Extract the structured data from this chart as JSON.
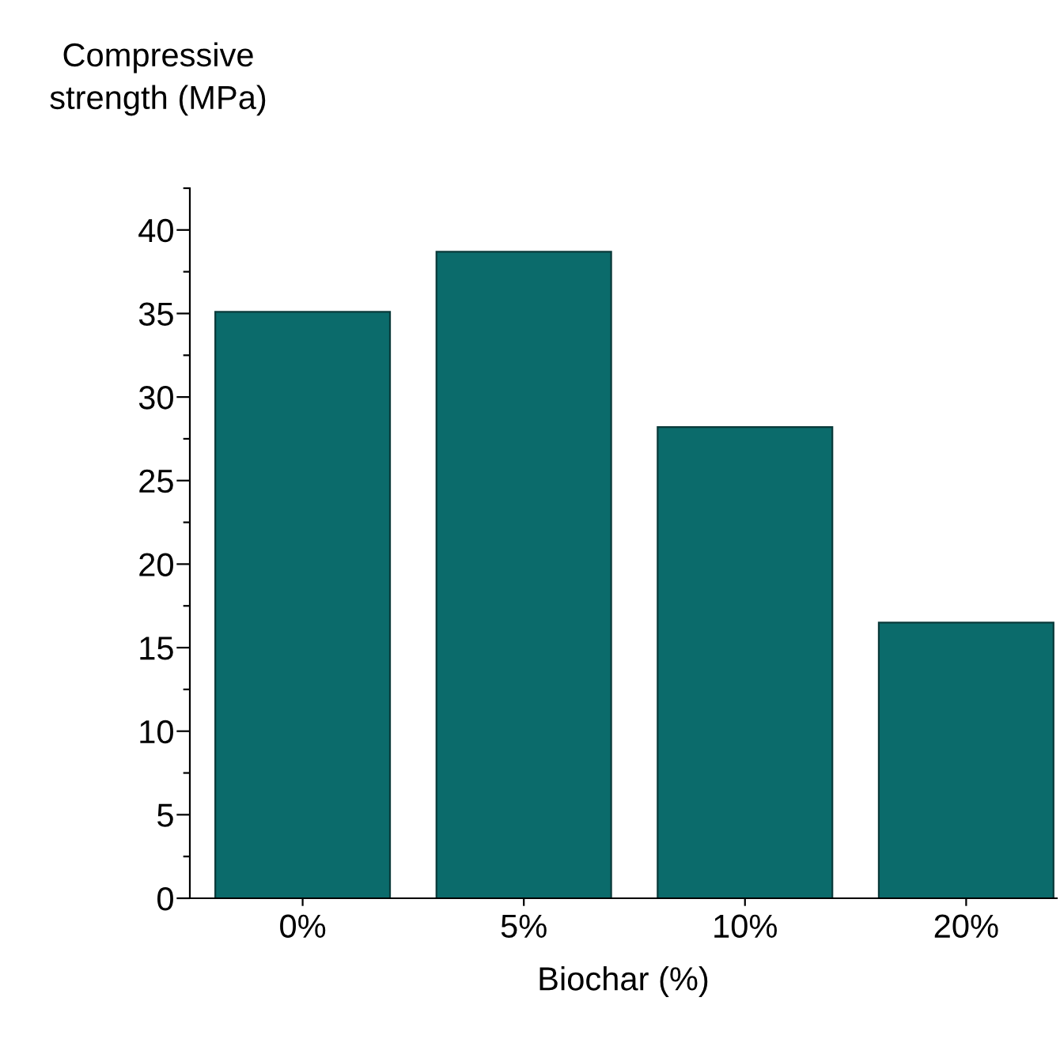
{
  "chart_data": {
    "type": "bar",
    "ylabel": "Compressive\nstrength (MPa)",
    "xlabel": "Biochar (%)",
    "categories": [
      "0%",
      "5%",
      "10%",
      "20%"
    ],
    "values": [
      35.1,
      38.7,
      28.2,
      16.5
    ],
    "color": "#0b6b6b",
    "ylim": [
      0,
      42.5
    ],
    "yticks": [
      0,
      {
        "value": 2.5,
        "label": null
      },
      5,
      {
        "value": 7.5,
        "label": null
      },
      10,
      {
        "value": 12.5,
        "label": null
      },
      15,
      {
        "value": 17.5,
        "label": null
      },
      20,
      {
        "value": 22.5,
        "label": null
      },
      25,
      {
        "value": 27.5,
        "label": null
      },
      30,
      {
        "value": 32.5,
        "label": null
      },
      35,
      {
        "value": 37.5,
        "label": null
      },
      40,
      {
        "value": 42.5,
        "label": null
      }
    ],
    "grid": false,
    "legend": false
  }
}
